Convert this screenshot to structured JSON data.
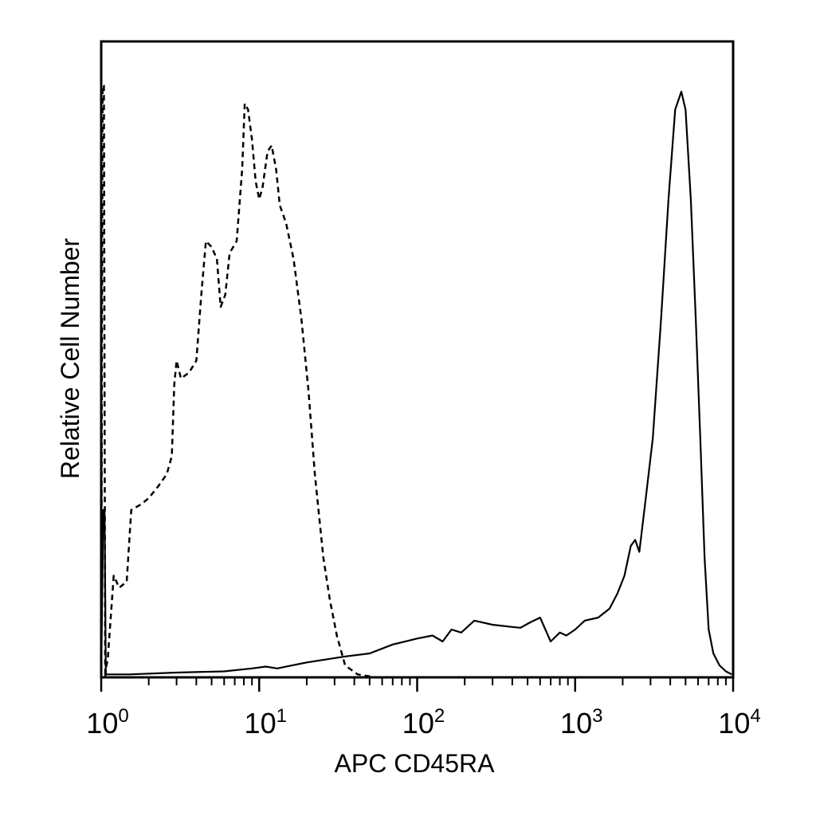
{
  "chart_data": {
    "type": "line",
    "title": "",
    "xlabel": "APC CD45RA",
    "ylabel": "Relative Cell Number",
    "x_scale": "log",
    "xlim": [
      1,
      10000
    ],
    "ylim": [
      0,
      100
    ],
    "grid": false,
    "legend": "none",
    "x_ticks": [
      {
        "base": "10",
        "exp": "0",
        "value": 1
      },
      {
        "base": "10",
        "exp": "1",
        "value": 10
      },
      {
        "base": "10",
        "exp": "2",
        "value": 100
      },
      {
        "base": "10",
        "exp": "3",
        "value": 1000
      },
      {
        "base": "10",
        "exp": "4",
        "value": 10000
      }
    ],
    "series": [
      {
        "line_style": "dashed",
        "color": "#000000",
        "points": [
          [
            1.0,
            0
          ],
          [
            1.02,
            99
          ],
          [
            1.04,
            99
          ],
          [
            1.06,
            0
          ],
          [
            1.08,
            2
          ],
          [
            1.1,
            3
          ],
          [
            1.2,
            17
          ],
          [
            1.3,
            15
          ],
          [
            1.45,
            16
          ],
          [
            1.55,
            28
          ],
          [
            1.8,
            29
          ],
          [
            2.0,
            30
          ],
          [
            2.3,
            32
          ],
          [
            2.6,
            34
          ],
          [
            2.8,
            37
          ],
          [
            2.9,
            49
          ],
          [
            3.0,
            53
          ],
          [
            3.2,
            50
          ],
          [
            3.6,
            51
          ],
          [
            4.0,
            53
          ],
          [
            4.3,
            64
          ],
          [
            4.6,
            73
          ],
          [
            5.0,
            72
          ],
          [
            5.4,
            70
          ],
          [
            5.7,
            62
          ],
          [
            6.1,
            64
          ],
          [
            6.5,
            71
          ],
          [
            7.2,
            73
          ],
          [
            7.8,
            85
          ],
          [
            8.1,
            96
          ],
          [
            8.5,
            95
          ],
          [
            9.0,
            90
          ],
          [
            9.5,
            83
          ],
          [
            10.0,
            80
          ],
          [
            10.5,
            82
          ],
          [
            11.3,
            88
          ],
          [
            12.0,
            89
          ],
          [
            12.8,
            85
          ],
          [
            13.5,
            79
          ],
          [
            14.8,
            76
          ],
          [
            16.5,
            70
          ],
          [
            18.5,
            60
          ],
          [
            20.5,
            48
          ],
          [
            22.5,
            34
          ],
          [
            25.5,
            20
          ],
          [
            28.0,
            13
          ],
          [
            31.0,
            7
          ],
          [
            35.0,
            2
          ],
          [
            42.0,
            0.5
          ],
          [
            55.0,
            0
          ],
          [
            10000,
            0
          ]
        ]
      },
      {
        "line_style": "solid",
        "color": "#000000",
        "points": [
          [
            1.0,
            0
          ],
          [
            1.03,
            28
          ],
          [
            1.05,
            28
          ],
          [
            1.07,
            0.5
          ],
          [
            1.5,
            0.5
          ],
          [
            3.0,
            0.8
          ],
          [
            6.0,
            1.0
          ],
          [
            9.0,
            1.5
          ],
          [
            11.0,
            1.8
          ],
          [
            13.0,
            1.5
          ],
          [
            20.0,
            2.5
          ],
          [
            35.0,
            3.5
          ],
          [
            50.0,
            4.0
          ],
          [
            70.0,
            5.5
          ],
          [
            100.0,
            6.5
          ],
          [
            125.0,
            7.0
          ],
          [
            145.0,
            6.0
          ],
          [
            165.0,
            8.0
          ],
          [
            190.0,
            7.5
          ],
          [
            230.0,
            9.5
          ],
          [
            300.0,
            8.8
          ],
          [
            380.0,
            8.5
          ],
          [
            450.0,
            8.3
          ],
          [
            520.0,
            9.2
          ],
          [
            600.0,
            10.0
          ],
          [
            700.0,
            6.0
          ],
          [
            800.0,
            7.5
          ],
          [
            880.0,
            7.0
          ],
          [
            1000.0,
            8.0
          ],
          [
            1150.0,
            9.5
          ],
          [
            1400.0,
            10.0
          ],
          [
            1650.0,
            11.5
          ],
          [
            1850.0,
            14.0
          ],
          [
            2050.0,
            17.0
          ],
          [
            2250.0,
            22.0
          ],
          [
            2400.0,
            23.0
          ],
          [
            2550.0,
            21.0
          ],
          [
            2800.0,
            30.0
          ],
          [
            3100.0,
            40.0
          ],
          [
            3500.0,
            60.0
          ],
          [
            3900.0,
            80.0
          ],
          [
            4300.0,
            95.0
          ],
          [
            4700.0,
            98.0
          ],
          [
            5000.0,
            95.0
          ],
          [
            5400.0,
            80.0
          ],
          [
            5800.0,
            60.0
          ],
          [
            6200.0,
            40.0
          ],
          [
            6600.0,
            20.0
          ],
          [
            7000.0,
            8.0
          ],
          [
            7500.0,
            4.0
          ],
          [
            8200.0,
            2.0
          ],
          [
            9000.0,
            1.0
          ],
          [
            9800.0,
            0.5
          ]
        ]
      }
    ]
  }
}
